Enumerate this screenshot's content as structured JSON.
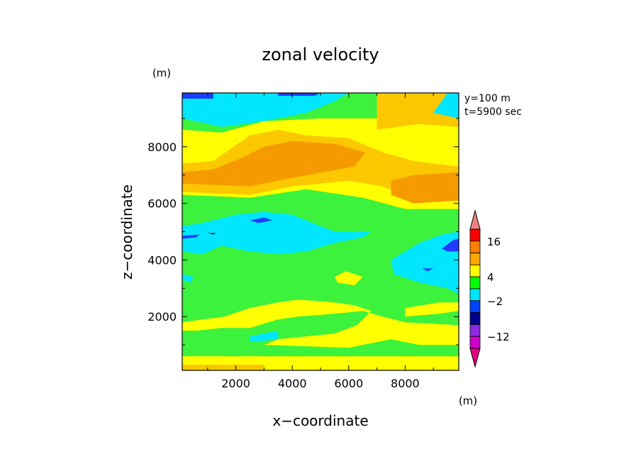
{
  "chart_data": {
    "type": "heatmap",
    "title": "zonal velocity",
    "xlabel": "x−coordinate",
    "ylabel": "z−coordinate",
    "x_unit": "(m)",
    "y_unit": "(m)",
    "colorbar_unit": "(m)",
    "annotations": [
      "y=100 m",
      "t=5900 sec"
    ],
    "xlim": [
      100,
      9900
    ],
    "ylim": [
      100,
      9900
    ],
    "xticks": [
      2000,
      4000,
      6000,
      8000
    ],
    "yticks": [
      2000,
      4000,
      6000,
      8000
    ],
    "xtick_labels": [
      "2000",
      "4000",
      "6000",
      "8000"
    ],
    "ytick_labels": [
      "2000",
      "4000",
      "6000",
      "8000"
    ],
    "colorbar": {
      "levels": [
        "",
        "",
        "",
        "",
        "",
        "",
        "",
        "",
        "",
        "",
        "",
        ""
      ],
      "labels": [
        {
          "text": "16",
          "index": 1
        },
        {
          "text": "4",
          "index": 4
        },
        {
          "text": "−2",
          "index": 6
        },
        {
          "text": "−12",
          "index": 9
        }
      ],
      "colors": [
        "#f08080",
        "#ff0000",
        "#ff7f00",
        "#ffa500",
        "#ffff00",
        "#00ff00",
        "#00e5ff",
        "#0040ff",
        "#00008b",
        "#8a2be2",
        "#cc00cc",
        "#e6007e"
      ]
    },
    "color_key": {
      "darkorange": "#f59b00",
      "orange": "#fbc800",
      "yellow": "#ffff00",
      "green": "#3cf23c",
      "cyan": "#00e6ff",
      "blue": "#1e3cff",
      "navy": "#00008b"
    },
    "regions": [
      {
        "color": "green",
        "points": [
          [
            100,
            100
          ],
          [
            9900,
            100
          ],
          [
            9900,
            9900
          ],
          [
            100,
            9900
          ]
        ]
      },
      {
        "color": "yellow",
        "points": [
          [
            100,
            100
          ],
          [
            9900,
            100
          ],
          [
            9900,
            600
          ],
          [
            100,
            600
          ]
        ]
      },
      {
        "color": "orange",
        "points": [
          [
            100,
            100
          ],
          [
            3000,
            100
          ],
          [
            3000,
            300
          ],
          [
            100,
            300
          ]
        ]
      },
      {
        "color": "yellow",
        "points": [
          [
            3000,
            1000
          ],
          [
            6000,
            900
          ],
          [
            7500,
            1200
          ],
          [
            8500,
            1000
          ],
          [
            9900,
            1000
          ],
          [
            9900,
            1700
          ],
          [
            8000,
            1800
          ],
          [
            7200,
            2000
          ],
          [
            6500,
            2200
          ],
          [
            5500,
            2100
          ],
          [
            4200,
            2000
          ],
          [
            3500,
            1900
          ],
          [
            2500,
            1600
          ],
          [
            1500,
            1600
          ],
          [
            600,
            1500
          ],
          [
            100,
            1500
          ],
          [
            100,
            1800
          ],
          [
            1600,
            2000
          ],
          [
            2500,
            2300
          ],
          [
            3500,
            2500
          ],
          [
            4200,
            2600
          ],
          [
            5500,
            2500
          ],
          [
            6200,
            2400
          ],
          [
            6800,
            2200
          ],
          [
            6300,
            1700
          ],
          [
            5500,
            1400
          ],
          [
            4500,
            1300
          ],
          [
            3500,
            1200
          ]
        ]
      },
      {
        "color": "yellow",
        "points": [
          [
            8000,
            2000
          ],
          [
            9200,
            2100
          ],
          [
            9900,
            2200
          ],
          [
            9900,
            2500
          ],
          [
            9200,
            2500
          ],
          [
            8000,
            2300
          ]
        ]
      },
      {
        "color": "yellow",
        "points": [
          [
            5600,
            3200
          ],
          [
            6200,
            3100
          ],
          [
            6500,
            3400
          ],
          [
            5900,
            3600
          ],
          [
            5500,
            3400
          ]
        ]
      },
      {
        "color": "yellow",
        "points": [
          [
            100,
            6300
          ],
          [
            2500,
            6200
          ],
          [
            4500,
            6500
          ],
          [
            6500,
            6200
          ],
          [
            8000,
            5800
          ],
          [
            9900,
            5800
          ],
          [
            9900,
            9000
          ],
          [
            8500,
            8900
          ],
          [
            7000,
            9000
          ],
          [
            5000,
            9000
          ],
          [
            3000,
            8900
          ],
          [
            1500,
            8500
          ],
          [
            100,
            8600
          ]
        ]
      },
      {
        "color": "orange",
        "points": [
          [
            100,
            6400
          ],
          [
            2500,
            6300
          ],
          [
            4000,
            6600
          ],
          [
            6000,
            6800
          ],
          [
            7200,
            6600
          ],
          [
            8200,
            6200
          ],
          [
            9900,
            6100
          ],
          [
            9900,
            7300
          ],
          [
            8300,
            7500
          ],
          [
            7200,
            7800
          ],
          [
            6000,
            8300
          ],
          [
            4500,
            8400
          ],
          [
            3500,
            8600
          ],
          [
            2500,
            8400
          ],
          [
            1200,
            7500
          ],
          [
            100,
            7400
          ]
        ]
      },
      {
        "color": "darkorange",
        "points": [
          [
            100,
            6700
          ],
          [
            2500,
            6600
          ],
          [
            4000,
            6900
          ],
          [
            6200,
            7300
          ],
          [
            6600,
            7800
          ],
          [
            5500,
            8100
          ],
          [
            4000,
            8200
          ],
          [
            3000,
            8000
          ],
          [
            2200,
            7600
          ],
          [
            1200,
            7200
          ],
          [
            100,
            7100
          ]
        ]
      },
      {
        "color": "darkorange",
        "points": [
          [
            7500,
            6300
          ],
          [
            8300,
            6000
          ],
          [
            9900,
            6100
          ],
          [
            9900,
            7100
          ],
          [
            8300,
            7000
          ],
          [
            7500,
            6800
          ]
        ]
      },
      {
        "color": "orange",
        "points": [
          [
            7000,
            8600
          ],
          [
            8500,
            8800
          ],
          [
            9900,
            8700
          ],
          [
            9900,
            9900
          ],
          [
            7000,
            9900
          ]
        ]
      },
      {
        "color": "cyan",
        "points": [
          [
            100,
            9000
          ],
          [
            1500,
            8700
          ],
          [
            3000,
            8900
          ],
          [
            4500,
            9200
          ],
          [
            5500,
            9600
          ],
          [
            6000,
            9900
          ],
          [
            100,
            9900
          ]
        ]
      },
      {
        "color": "cyan",
        "points": [
          [
            9000,
            9200
          ],
          [
            9900,
            9000
          ],
          [
            9900,
            9900
          ],
          [
            9500,
            9900
          ]
        ]
      },
      {
        "color": "blue",
        "points": [
          [
            100,
            9700
          ],
          [
            1200,
            9700
          ],
          [
            1200,
            9900
          ],
          [
            100,
            9900
          ]
        ]
      },
      {
        "color": "blue",
        "points": [
          [
            3500,
            9800
          ],
          [
            4800,
            9800
          ],
          [
            5000,
            9900
          ],
          [
            3500,
            9900
          ]
        ]
      },
      {
        "color": "cyan",
        "points": [
          [
            100,
            5200
          ],
          [
            800,
            5300
          ],
          [
            2000,
            5600
          ],
          [
            3000,
            5700
          ],
          [
            4000,
            5600
          ],
          [
            5500,
            5000
          ],
          [
            6800,
            5000
          ],
          [
            6500,
            4800
          ],
          [
            5500,
            4600
          ],
          [
            4500,
            4300
          ],
          [
            3500,
            4200
          ],
          [
            2500,
            4300
          ],
          [
            1500,
            4500
          ],
          [
            800,
            4200
          ],
          [
            100,
            4300
          ]
        ]
      },
      {
        "color": "cyan",
        "points": [
          [
            7500,
            4000
          ],
          [
            8500,
            4600
          ],
          [
            9300,
            4900
          ],
          [
            9900,
            5000
          ],
          [
            9900,
            2800
          ],
          [
            9500,
            3000
          ],
          [
            8500,
            3200
          ],
          [
            7600,
            3500
          ]
        ]
      },
      {
        "color": "cyan",
        "points": [
          [
            2500,
            1300
          ],
          [
            3500,
            1500
          ],
          [
            3500,
            1200
          ],
          [
            2500,
            1100
          ]
        ]
      },
      {
        "color": "cyan",
        "points": [
          [
            100,
            3300
          ],
          [
            400,
            3200
          ],
          [
            500,
            3400
          ],
          [
            100,
            3500
          ]
        ]
      },
      {
        "color": "blue",
        "points": [
          [
            2500,
            5400
          ],
          [
            3000,
            5500
          ],
          [
            3300,
            5400
          ],
          [
            2800,
            5300
          ]
        ]
      },
      {
        "color": "blue",
        "points": [
          [
            100,
            4850
          ],
          [
            700,
            4900
          ],
          [
            600,
            4800
          ],
          [
            100,
            4750
          ]
        ]
      },
      {
        "color": "blue",
        "points": [
          [
            9300,
            4400
          ],
          [
            9700,
            4700
          ],
          [
            9900,
            4750
          ],
          [
            9900,
            4300
          ],
          [
            9500,
            4300
          ]
        ]
      },
      {
        "color": "blue",
        "points": [
          [
            8600,
            3700
          ],
          [
            9000,
            3700
          ],
          [
            8800,
            3600
          ]
        ]
      },
      {
        "color": "navy",
        "points": [
          [
            1000,
            4950
          ],
          [
            1300,
            4950
          ],
          [
            1200,
            4900
          ]
        ]
      }
    ]
  }
}
